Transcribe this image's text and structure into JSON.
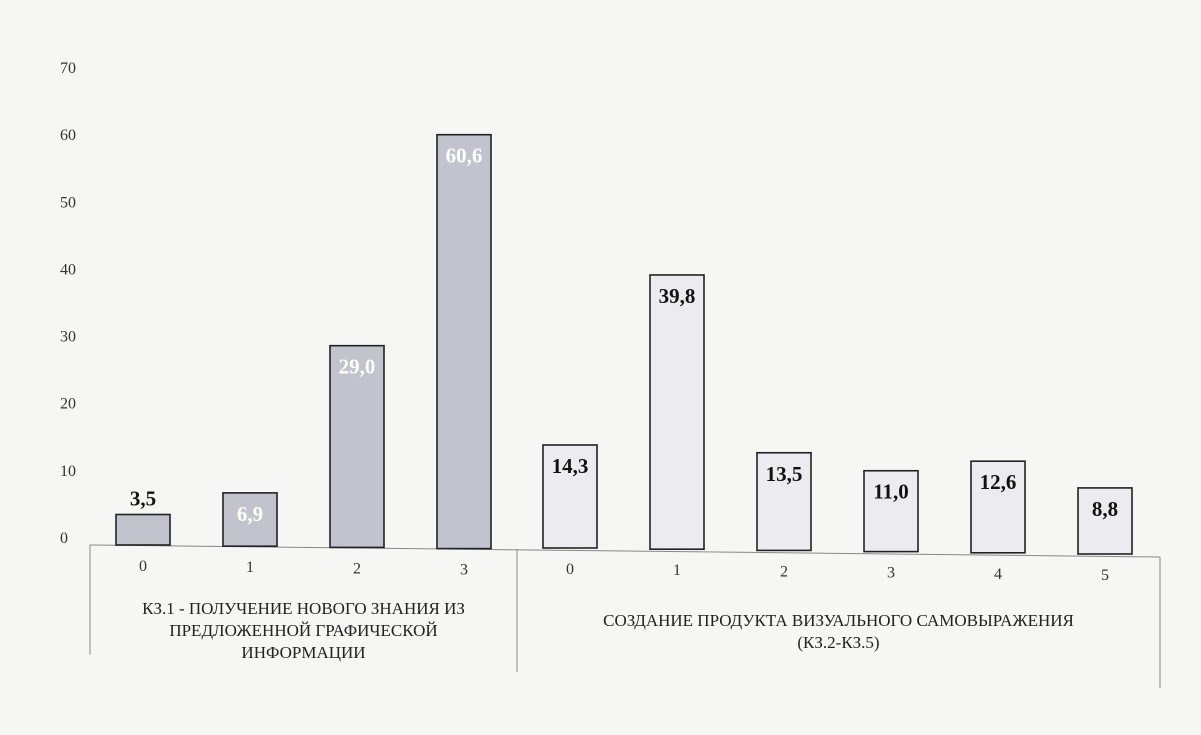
{
  "chart_data": {
    "type": "bar",
    "ylim": [
      0,
      70
    ],
    "yticks": [
      0,
      10,
      20,
      30,
      40,
      50,
      60,
      70
    ],
    "grid": false,
    "legend": "none",
    "groups": [
      {
        "label_lines": [
          "КЗ.1 - ПОЛУЧЕНИЕ НОВОГО ЗНАНИЯ ИЗ",
          "ПРЕДЛОЖЕННОЙ ГРАФИЧЕСКОЙ",
          "ИНФОРМАЦИИ"
        ],
        "fill": "#c2c3cc",
        "bars": [
          {
            "category": "0",
            "value": 3.5,
            "label": "3,5",
            "label_position": "above"
          },
          {
            "category": "1",
            "value": 6.9,
            "label": "6,9",
            "label_position": "inside"
          },
          {
            "category": "2",
            "value": 29.0,
            "label": "29,0",
            "label_position": "inside"
          },
          {
            "category": "3",
            "value": 60.6,
            "label": "60,6",
            "label_position": "inside"
          }
        ]
      },
      {
        "label_lines": [
          "СОЗДАНИЕ ПРОДУКТА ВИЗУАЛЬНОГО САМОВЫРАЖЕНИЯ",
          "(КЗ.2-КЗ.5)"
        ],
        "fill": "#ececf0",
        "bars": [
          {
            "category": "0",
            "value": 14.3,
            "label": "14,3",
            "label_position": "inside"
          },
          {
            "category": "1",
            "value": 39.8,
            "label": "39,8",
            "label_position": "inside"
          },
          {
            "category": "2",
            "value": 13.5,
            "label": "13,5",
            "label_position": "inside"
          },
          {
            "category": "3",
            "value": 11.0,
            "label": "11,0",
            "label_position": "inside"
          },
          {
            "category": "4",
            "value": 12.6,
            "label": "12,6",
            "label_position": "inside"
          },
          {
            "category": "5",
            "value": 8.8,
            "label": "8,8",
            "label_position": "inside"
          }
        ]
      }
    ],
    "colors": {
      "bar_stroke": "#222222",
      "label_inside_dark_group": "#ffffff",
      "label_default": "#111111",
      "axis": "#888888"
    }
  }
}
